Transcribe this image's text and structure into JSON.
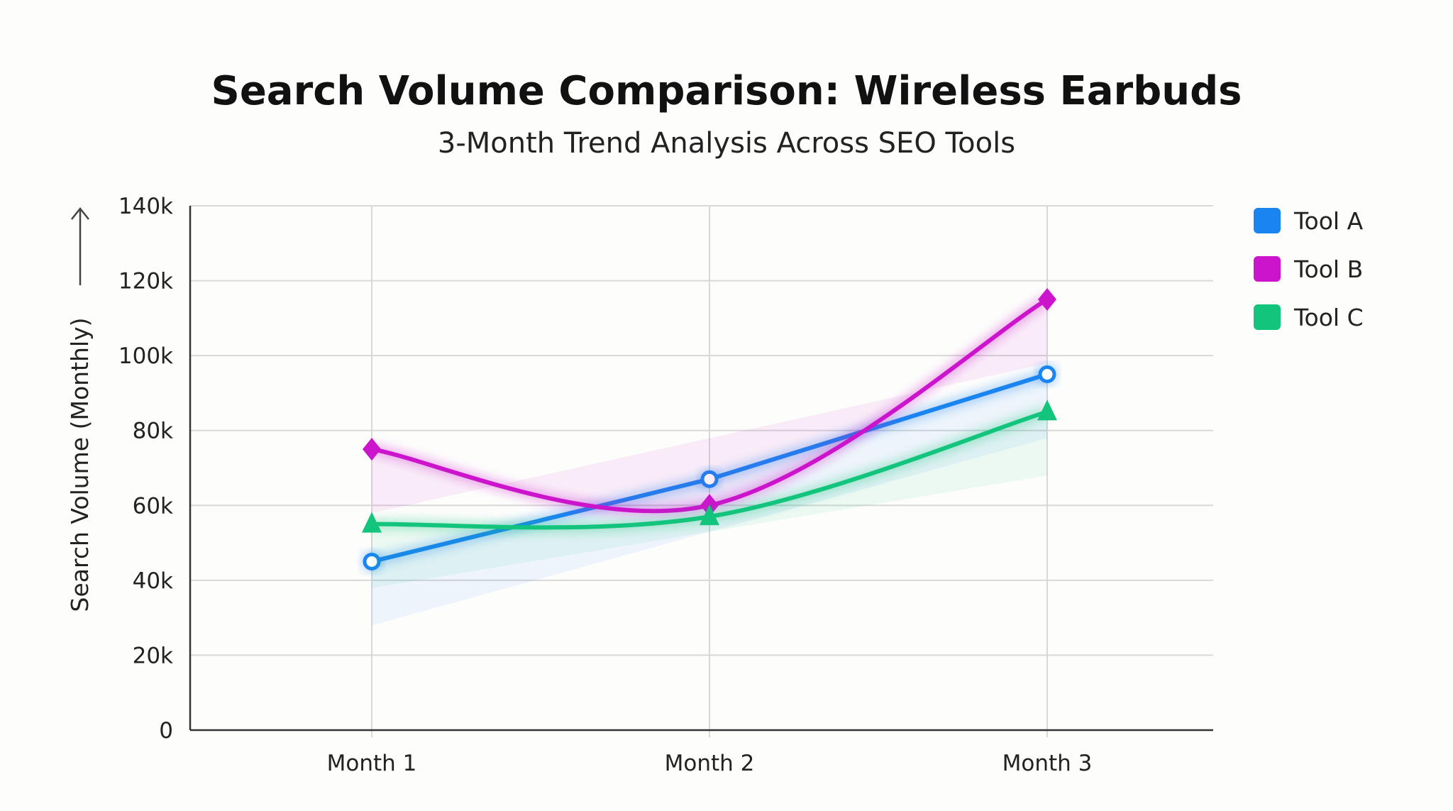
{
  "chart_data": {
    "type": "line",
    "title": "Search Volume Comparison: Wireless Earbuds",
    "subtitle": "3-Month Trend Analysis Across SEO Tools",
    "xlabel": "",
    "ylabel": "Search Volume (Monthly)",
    "categories": [
      "Month 1",
      "Month 2",
      "Month 3"
    ],
    "ylim": [
      0,
      140000
    ],
    "yticks": [
      0,
      20000,
      40000,
      60000,
      80000,
      100000,
      120000,
      140000
    ],
    "ytick_labels": [
      "0",
      "20k",
      "40k",
      "60k",
      "80k",
      "100k",
      "120k",
      "140k"
    ],
    "grid": true,
    "legend_position": "right",
    "series": [
      {
        "name": "Tool A",
        "values": [
          45000,
          67000,
          95000
        ],
        "color": "#1a85f0",
        "marker": "circle",
        "smooth": false
      },
      {
        "name": "Tool B",
        "values": [
          75000,
          60000,
          115000
        ],
        "color": "#cc14cc",
        "marker": "diamond",
        "smooth": true
      },
      {
        "name": "Tool C",
        "values": [
          55000,
          57000,
          85000
        ],
        "color": "#13c47c",
        "marker": "triangle",
        "smooth": true
      }
    ]
  }
}
